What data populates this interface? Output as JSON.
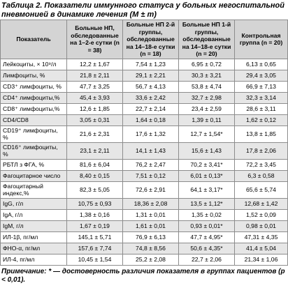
{
  "title": "Таблица 2. Показатели иммунного статуса у больных негоспитальной пневмонией в динамике лечения (M ± m)",
  "table": {
    "header": [
      "Показатель",
      "Больные НП, обследованные на 1–2-е сутки (n = 38)",
      "Больные НП 2-й группы, обследованные на 14–18-е сутки (n = 18)",
      "Больные НП 1-й группы, обследованные на 14–18-е сутки (n = 20)",
      "Контрольная группа (n = 20)"
    ],
    "rows": [
      [
        "Лейкоциты, × 10⁹/л",
        "12,2 ± 1,67",
        "7,54 ± 1,23",
        "6,95 ± 0,72",
        "6,13 ± 0,65"
      ],
      [
        "Лимфоциты, %",
        "21,8 ± 2,11",
        "29,1 ± 2,21",
        "30,3 ± 3,21",
        "29,4 ± 3,05"
      ],
      [
        "CD3⁺ лимфоциты, %",
        "47,7 ± 3,25",
        "56,7 ± 4,13",
        "53,8 ± 4,74",
        "66,9 ± 7,13"
      ],
      [
        "CD4⁺ лимфоциты,%",
        "45,4 ± 3,93",
        "33,6 ± 2,42",
        "32,7 ± 2,98",
        "32,3 ± 3,14"
      ],
      [
        "CD8⁺ лимфоциты,%",
        "12,6 ± 1,85",
        "22,7 ± 2,14",
        "23,4 ± 2,59",
        "28,6 ± 3,11"
      ],
      [
        "CD4/CD8",
        "3,05 ± 0,31",
        "1,64 ± 0,18",
        "1,39 ± 0,11",
        "1,62 ± 0,12"
      ],
      [
        "CD19⁺ лимфоциты, %",
        "21,6 ± 2,31",
        "17,6 ± 1,32",
        "12,7 ± 1,54*",
        "13,8 ± 1,85"
      ],
      [
        "CD16⁺ лимфоциты, %",
        "23,1 ± 2,11",
        "14,1 ± 1,43",
        "15,6 ± 1,43",
        "17,8 ± 2,06"
      ],
      [
        "РБТЛ з ФГА, %",
        "81,6 ± 6,04",
        "76,2 ± 2,47",
        "70,2 ± 3,41*",
        "72,2 ± 3,45"
      ],
      [
        "Фагоцитарное число",
        "8,40 ± 0,15",
        "7,51 ± 0,12",
        "6,01 ± 0,13*",
        "6,3 ± 0,58"
      ],
      [
        "Фагоцитарный индекс,%",
        "82,3 ± 5,05",
        "72,6 ± 2,91",
        "64,1 ± 3,17*",
        "65,6 ± 5,74"
      ],
      [
        "IgG, г/л",
        "10,75 ± 0,93",
        "18,36 ± 2,08",
        "13,5 ± 1,12*",
        "12,68 ± 1,42"
      ],
      [
        "IgA, г/л",
        "1,38 ± 0,16",
        "1,31 ± 0,01",
        "1,35 ± 0,02",
        "1,52 ± 0,09"
      ],
      [
        "IgM, г/л",
        "1,67 ± 0,19",
        "1,61 ± 0,01",
        "0,93 ± 0,01*",
        "0,98 ± 0,01"
      ],
      [
        "ИЛ-1β, пг/мл",
        "145,1 ± 5,71",
        "76,9 ± 6,13",
        "47,7 ± 4,95*",
        "47,31 ± 4,35"
      ],
      [
        "ФНО-α, пг/мл",
        "157,6 ± 7,74",
        "74,8 ± 8,56",
        "50,6 ± 4,35*",
        "41,4 ± 5,04"
      ],
      [
        "ИЛ-4, пг/мл",
        "10,45 ± 1,54",
        "25,2 ± 2,08",
        "22,7 ± 2,06",
        "21,34 ± 1,06"
      ]
    ]
  },
  "note": "Примечание: * — достоверность различия показателя в группах пациентов (p < 0,01)."
}
